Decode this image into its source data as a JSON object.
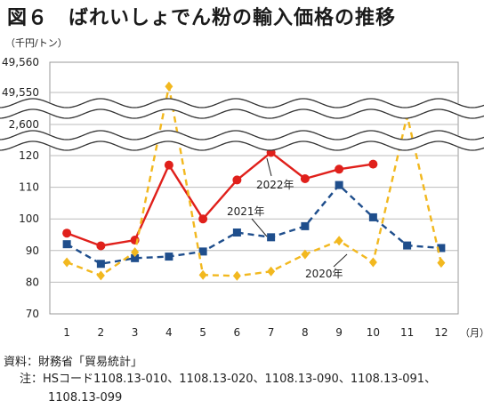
{
  "chart_data": {
    "type": "line",
    "title": "図６　ばれいしょでん粉の輸入価格の推移",
    "ylabel": "（千円/トン）",
    "xlabel": "（月）",
    "categories": [
      "1",
      "2",
      "3",
      "4",
      "5",
      "6",
      "7",
      "8",
      "9",
      "10",
      "11",
      "12"
    ],
    "y_ticks": [
      "70",
      "80",
      "90",
      "100",
      "110",
      "120",
      "2,600",
      "49,550",
      "49,560"
    ],
    "lower_range": [
      70,
      120
    ],
    "broken_axis": true,
    "grid": true,
    "series": [
      {
        "name": "2022年",
        "color": "#e0201b",
        "marker": "circle",
        "dash": "solid",
        "values": [
          95.5,
          91.5,
          93.3,
          117,
          100,
          112.3,
          121,
          112.7,
          115.7,
          117.3,
          null,
          null
        ]
      },
      {
        "name": "2021年",
        "color": "#1f4e8c",
        "marker": "square",
        "dash": "dashed",
        "values": [
          92,
          85.8,
          87.6,
          88.1,
          89.7,
          95.7,
          94.2,
          97.7,
          110.7,
          100.5,
          91.6,
          90.8
        ]
      },
      {
        "name": "2020年",
        "color": "#f2b81f",
        "marker": "diamond",
        "dash": "dashed",
        "values": [
          86.3,
          82.1,
          89.5,
          49552,
          82.3,
          82,
          83.4,
          88.8,
          93.1,
          86.3,
          2620,
          86.1
        ]
      }
    ]
  },
  "source": {
    "label": "資料：",
    "text": "財務省「貿易統計」"
  },
  "note": {
    "label": "注：",
    "line1": "HSコード1108.13-010、1108.13-020、1108.13-090、1108.13-091、",
    "line2": "1108.13-099"
  }
}
